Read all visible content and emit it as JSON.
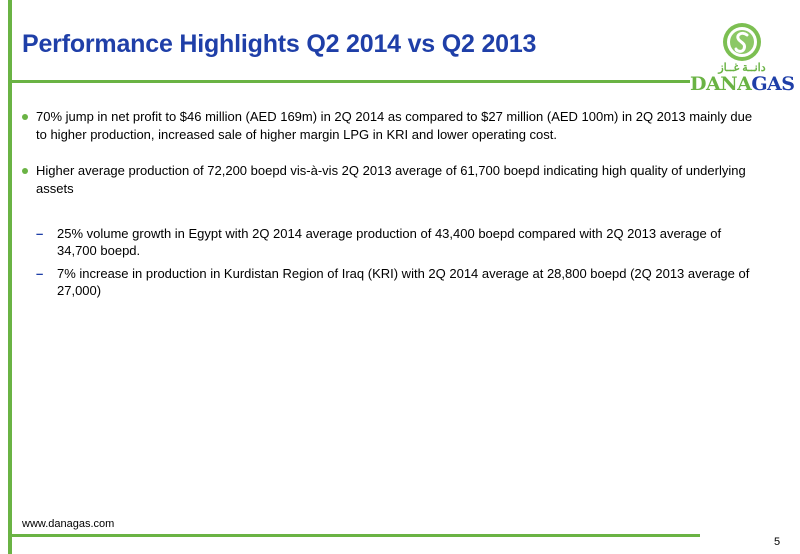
{
  "slide": {
    "title": "Performance Highlights Q2 2014 vs Q2 2013",
    "bullets": [
      "70% jump in net profit to $46 million (AED 169m) in 2Q 2014 as compared to $27 million (AED 100m) in 2Q 2013 mainly due to higher production, increased sale of higher margin LPG in KRI and lower operating cost.",
      "Higher average production of 72,200 boepd vis-à-vis 2Q 2013 average of 61,700 boepd indicating high quality of underlying assets"
    ],
    "sub_bullets": [
      "25% volume growth in Egypt with 2Q 2014 average production of 43,400 boepd compared with 2Q 2013 average of 34,700 boepd.",
      "7% increase in production in Kurdistan Region of Iraq (KRI) with 2Q 2014 average at 28,800 boepd (2Q 2013 average of 27,000)"
    ],
    "sub_marker": "–"
  },
  "logo": {
    "arabic": "دانــة غــاز",
    "word_part1": "DANA",
    "word_part2": "GAS",
    "icon": "danagas-logo-icon"
  },
  "footer": {
    "url": "www.danagas.com",
    "page_number": "5"
  },
  "colors": {
    "title_blue": "#1f3fa8",
    "accent_green": "#6ab344"
  }
}
